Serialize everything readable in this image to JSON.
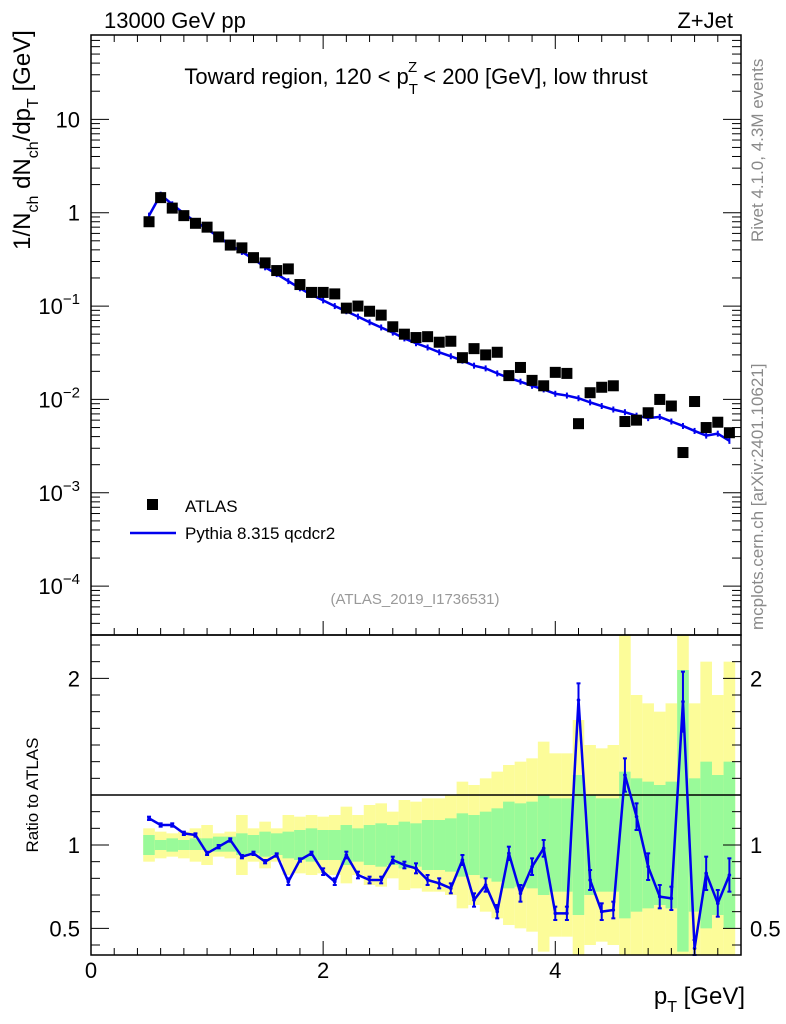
{
  "header": {
    "left": "13000 GeV pp",
    "right": "Z+Jet"
  },
  "side_text": {
    "rivet": "Rivet 4.1.0,  4.3M events",
    "mcplots": "mcplots.cern.ch [arXiv:2401.10621]"
  },
  "chart_data": [
    {
      "type": "scatter",
      "panel": "main",
      "title": {
        "pre": "Toward region, 120 < p",
        "sub": "T",
        "sup": "Z",
        "post": " < 200 [GeV], low thrust"
      },
      "ylabel": {
        "p1": "1/N",
        "s1": "ch",
        "p2": " dN",
        "s2": "ch",
        "p3": "/dp",
        "s3": "T",
        "p4": " [GeV]"
      },
      "yscale": "log",
      "xlim": [
        0,
        5.6
      ],
      "ylim": [
        3e-05,
        80
      ],
      "ytick_labels": [
        {
          "value": 10,
          "base": "10",
          "exp": ""
        },
        {
          "value": 1,
          "base": "1",
          "exp": ""
        },
        {
          "value": 0.1,
          "base": "10",
          "exp": "−1"
        },
        {
          "value": 0.01,
          "base": "10",
          "exp": "−2"
        },
        {
          "value": 0.001,
          "base": "10",
          "exp": "−3"
        },
        {
          "value": 0.0001,
          "base": "10",
          "exp": "−4"
        }
      ],
      "annotation": "(ATLAS_2019_I1736531)",
      "legend": {
        "position": "lower-left",
        "entries": [
          {
            "label": "ATLAS",
            "style": "marker"
          },
          {
            "label": "Pythia 8.315 qcdcr2",
            "style": "line"
          }
        ]
      },
      "colors": {
        "data": "#000000",
        "mc": "#0000ee"
      },
      "series": [
        {
          "name": "ATLAS",
          "x": [
            0.5,
            0.6,
            0.7,
            0.8,
            0.9,
            1.0,
            1.1,
            1.2,
            1.3,
            1.4,
            1.5,
            1.6,
            1.7,
            1.8,
            1.9,
            2.0,
            2.1,
            2.2,
            2.3,
            2.4,
            2.5,
            2.6,
            2.7,
            2.8,
            2.9,
            3.0,
            3.1,
            3.2,
            3.3,
            3.4,
            3.5,
            3.6,
            3.7,
            3.8,
            3.9,
            4.0,
            4.1,
            4.2,
            4.3,
            4.4,
            4.5,
            4.6,
            4.7,
            4.8,
            4.9,
            5.0,
            5.1,
            5.2,
            5.3,
            5.4,
            5.5
          ],
          "y": [
            0.8,
            1.45,
            1.12,
            0.93,
            0.77,
            0.7,
            0.55,
            0.45,
            0.42,
            0.33,
            0.29,
            0.24,
            0.25,
            0.17,
            0.14,
            0.14,
            0.135,
            0.095,
            0.1,
            0.088,
            0.08,
            0.06,
            0.05,
            0.046,
            0.047,
            0.041,
            0.042,
            0.028,
            0.035,
            0.03,
            0.032,
            0.018,
            0.022,
            0.016,
            0.014,
            0.0195,
            0.019,
            0.0055,
            0.0118,
            0.0135,
            0.014,
            0.0058,
            0.006,
            0.0072,
            0.01,
            0.0085,
            0.0027,
            0.0095,
            0.005,
            0.0057,
            0.0044
          ]
        },
        {
          "name": "Pythia 8.315 qcdcr2",
          "x": [
            0.5,
            0.6,
            0.7,
            0.8,
            0.9,
            1.0,
            1.1,
            1.2,
            1.3,
            1.4,
            1.5,
            1.6,
            1.7,
            1.8,
            1.9,
            2.0,
            2.1,
            2.2,
            2.3,
            2.4,
            2.5,
            2.6,
            2.7,
            2.8,
            2.9,
            3.0,
            3.1,
            3.2,
            3.3,
            3.4,
            3.5,
            3.6,
            3.7,
            3.8,
            3.9,
            4.0,
            4.1,
            4.2,
            4.3,
            4.4,
            4.5,
            4.6,
            4.7,
            4.8,
            4.9,
            5.0,
            5.1,
            5.2,
            5.3,
            5.4,
            5.5
          ],
          "y": [
            0.93,
            1.56,
            1.23,
            0.98,
            0.8,
            0.67,
            0.55,
            0.45,
            0.38,
            0.32,
            0.26,
            0.22,
            0.185,
            0.155,
            0.132,
            0.115,
            0.1,
            0.088,
            0.077,
            0.067,
            0.059,
            0.052,
            0.045,
            0.04,
            0.036,
            0.032,
            0.029,
            0.026,
            0.023,
            0.0215,
            0.019,
            0.017,
            0.0155,
            0.014,
            0.0128,
            0.0115,
            0.011,
            0.0103,
            0.0093,
            0.0085,
            0.0078,
            0.0073,
            0.0067,
            0.0063,
            0.0065,
            0.0058,
            0.0052,
            0.0046,
            0.0041,
            0.0043,
            0.0036
          ]
        }
      ]
    },
    {
      "type": "line",
      "panel": "ratio",
      "ylabel": "Ratio to ATLAS",
      "xlabel": "p",
      "xlabel_sub": "T",
      "xlabel_post": " [GeV]",
      "xlim": [
        0,
        5.6
      ],
      "ylim": [
        0.34,
        2.26
      ],
      "xticks": [
        {
          "value": 0,
          "label": "0"
        },
        {
          "value": 2,
          "label": "2"
        },
        {
          "value": 4,
          "label": "4"
        }
      ],
      "yticks": [
        {
          "value": 0.5,
          "label": "0.5"
        },
        {
          "value": 1,
          "label": "1"
        },
        {
          "value": 2,
          "label": "2"
        }
      ],
      "colors": {
        "mc": "#0000ee",
        "band_inner": "#99fa99",
        "band_outer": "#fcfc99",
        "reference": "#000000"
      },
      "x": [
        0.5,
        0.6,
        0.7,
        0.8,
        0.9,
        1.0,
        1.1,
        1.2,
        1.3,
        1.4,
        1.5,
        1.6,
        1.7,
        1.8,
        1.9,
        2.0,
        2.1,
        2.2,
        2.3,
        2.4,
        2.5,
        2.6,
        2.7,
        2.8,
        2.9,
        3.0,
        3.1,
        3.2,
        3.3,
        3.4,
        3.5,
        3.6,
        3.7,
        3.8,
        3.9,
        4.0,
        4.1,
        4.2,
        4.3,
        4.4,
        4.5,
        4.6,
        4.7,
        4.8,
        4.9,
        5.0,
        5.1,
        5.2,
        5.3,
        5.4,
        5.5
      ],
      "ratio": [
        1.16,
        1.12,
        1.12,
        1.07,
        1.06,
        0.95,
        0.99,
        1.03,
        0.93,
        0.95,
        0.9,
        0.94,
        0.78,
        0.91,
        0.95,
        0.84,
        0.78,
        0.94,
        0.82,
        0.79,
        0.79,
        0.91,
        0.88,
        0.86,
        0.79,
        0.77,
        0.74,
        0.91,
        0.67,
        0.76,
        0.6,
        0.95,
        0.71,
        0.87,
        0.98,
        0.59,
        0.59,
        1.87,
        0.79,
        0.6,
        0.61,
        1.42,
        1.17,
        0.87,
        0.69,
        0.68,
        1.86,
        0.38,
        0.83,
        0.65,
        0.82
      ],
      "ratio_err": [
        0.01,
        0.01,
        0.01,
        0.01,
        0.01,
        0.01,
        0.01,
        0.01,
        0.01,
        0.01,
        0.01,
        0.01,
        0.02,
        0.01,
        0.01,
        0.02,
        0.02,
        0.02,
        0.02,
        0.02,
        0.02,
        0.02,
        0.02,
        0.03,
        0.03,
        0.03,
        0.03,
        0.03,
        0.04,
        0.04,
        0.04,
        0.04,
        0.05,
        0.05,
        0.05,
        0.04,
        0.04,
        0.1,
        0.06,
        0.05,
        0.05,
        0.1,
        0.08,
        0.08,
        0.07,
        0.07,
        0.18,
        0.05,
        0.1,
        0.08,
        0.1
      ],
      "band_inner": [
        [
          0.94,
          1.06
        ],
        [
          0.97,
          1.03
        ],
        [
          0.96,
          1.04
        ],
        [
          0.97,
          1.03
        ],
        [
          0.97,
          1.04
        ],
        [
          0.97,
          1.04
        ],
        [
          0.96,
          1.05
        ],
        [
          0.96,
          1.05
        ],
        [
          0.94,
          1.07
        ],
        [
          0.95,
          1.06
        ],
        [
          0.93,
          1.08
        ],
        [
          0.94,
          1.07
        ],
        [
          0.92,
          1.08
        ],
        [
          0.91,
          1.09
        ],
        [
          0.9,
          1.1
        ],
        [
          0.91,
          1.09
        ],
        [
          0.91,
          1.09
        ],
        [
          0.88,
          1.12
        ],
        [
          0.9,
          1.1
        ],
        [
          0.88,
          1.12
        ],
        [
          0.87,
          1.13
        ],
        [
          0.88,
          1.12
        ],
        [
          0.86,
          1.14
        ],
        [
          0.87,
          1.13
        ],
        [
          0.85,
          1.15
        ],
        [
          0.85,
          1.15
        ],
        [
          0.84,
          1.16
        ],
        [
          0.81,
          1.19
        ],
        [
          0.82,
          1.18
        ],
        [
          0.8,
          1.2
        ],
        [
          0.78,
          1.22
        ],
        [
          0.74,
          1.26
        ],
        [
          0.75,
          1.25
        ],
        [
          0.74,
          1.26
        ],
        [
          0.7,
          1.3
        ],
        [
          0.72,
          1.28
        ],
        [
          0.72,
          1.28
        ],
        [
          0.58,
          1.42
        ],
        [
          0.7,
          1.3
        ],
        [
          0.72,
          1.28
        ],
        [
          0.72,
          1.28
        ],
        [
          0.56,
          1.44
        ],
        [
          0.6,
          1.4
        ],
        [
          0.62,
          1.38
        ],
        [
          0.64,
          1.36
        ],
        [
          0.62,
          1.38
        ],
        [
          0.36,
          2.05
        ],
        [
          0.6,
          1.4
        ],
        [
          0.5,
          1.5
        ],
        [
          0.58,
          1.42
        ],
        [
          0.5,
          1.5
        ]
      ],
      "band_outer": [
        [
          0.9,
          1.1
        ],
        [
          0.92,
          1.08
        ],
        [
          0.93,
          1.07
        ],
        [
          0.92,
          1.08
        ],
        [
          0.9,
          1.1
        ],
        [
          0.88,
          1.12
        ],
        [
          0.93,
          1.07
        ],
        [
          0.92,
          1.08
        ],
        [
          0.82,
          1.18
        ],
        [
          0.9,
          1.1
        ],
        [
          0.86,
          1.14
        ],
        [
          0.9,
          1.1
        ],
        [
          0.82,
          1.18
        ],
        [
          0.83,
          1.17
        ],
        [
          0.82,
          1.18
        ],
        [
          0.83,
          1.17
        ],
        [
          0.82,
          1.18
        ],
        [
          0.77,
          1.23
        ],
        [
          0.82,
          1.18
        ],
        [
          0.76,
          1.24
        ],
        [
          0.75,
          1.25
        ],
        [
          0.8,
          1.2
        ],
        [
          0.73,
          1.27
        ],
        [
          0.74,
          1.26
        ],
        [
          0.72,
          1.28
        ],
        [
          0.72,
          1.28
        ],
        [
          0.7,
          1.3
        ],
        [
          0.62,
          1.38
        ],
        [
          0.64,
          1.36
        ],
        [
          0.6,
          1.4
        ],
        [
          0.56,
          1.44
        ],
        [
          0.52,
          1.48
        ],
        [
          0.5,
          1.5
        ],
        [
          0.48,
          1.52
        ],
        [
          0.36,
          1.62
        ],
        [
          0.45,
          1.55
        ],
        [
          0.45,
          1.55
        ],
        [
          0.34,
          1.75
        ],
        [
          0.4,
          1.6
        ],
        [
          0.42,
          1.58
        ],
        [
          0.4,
          1.6
        ],
        [
          0.34,
          2.26
        ],
        [
          0.34,
          1.9
        ],
        [
          0.34,
          1.85
        ],
        [
          0.34,
          1.8
        ],
        [
          0.34,
          1.85
        ],
        [
          0.34,
          2.26
        ],
        [
          0.34,
          1.85
        ],
        [
          0.34,
          2.1
        ],
        [
          0.34,
          1.9
        ],
        [
          0.34,
          2.1
        ]
      ]
    }
  ]
}
